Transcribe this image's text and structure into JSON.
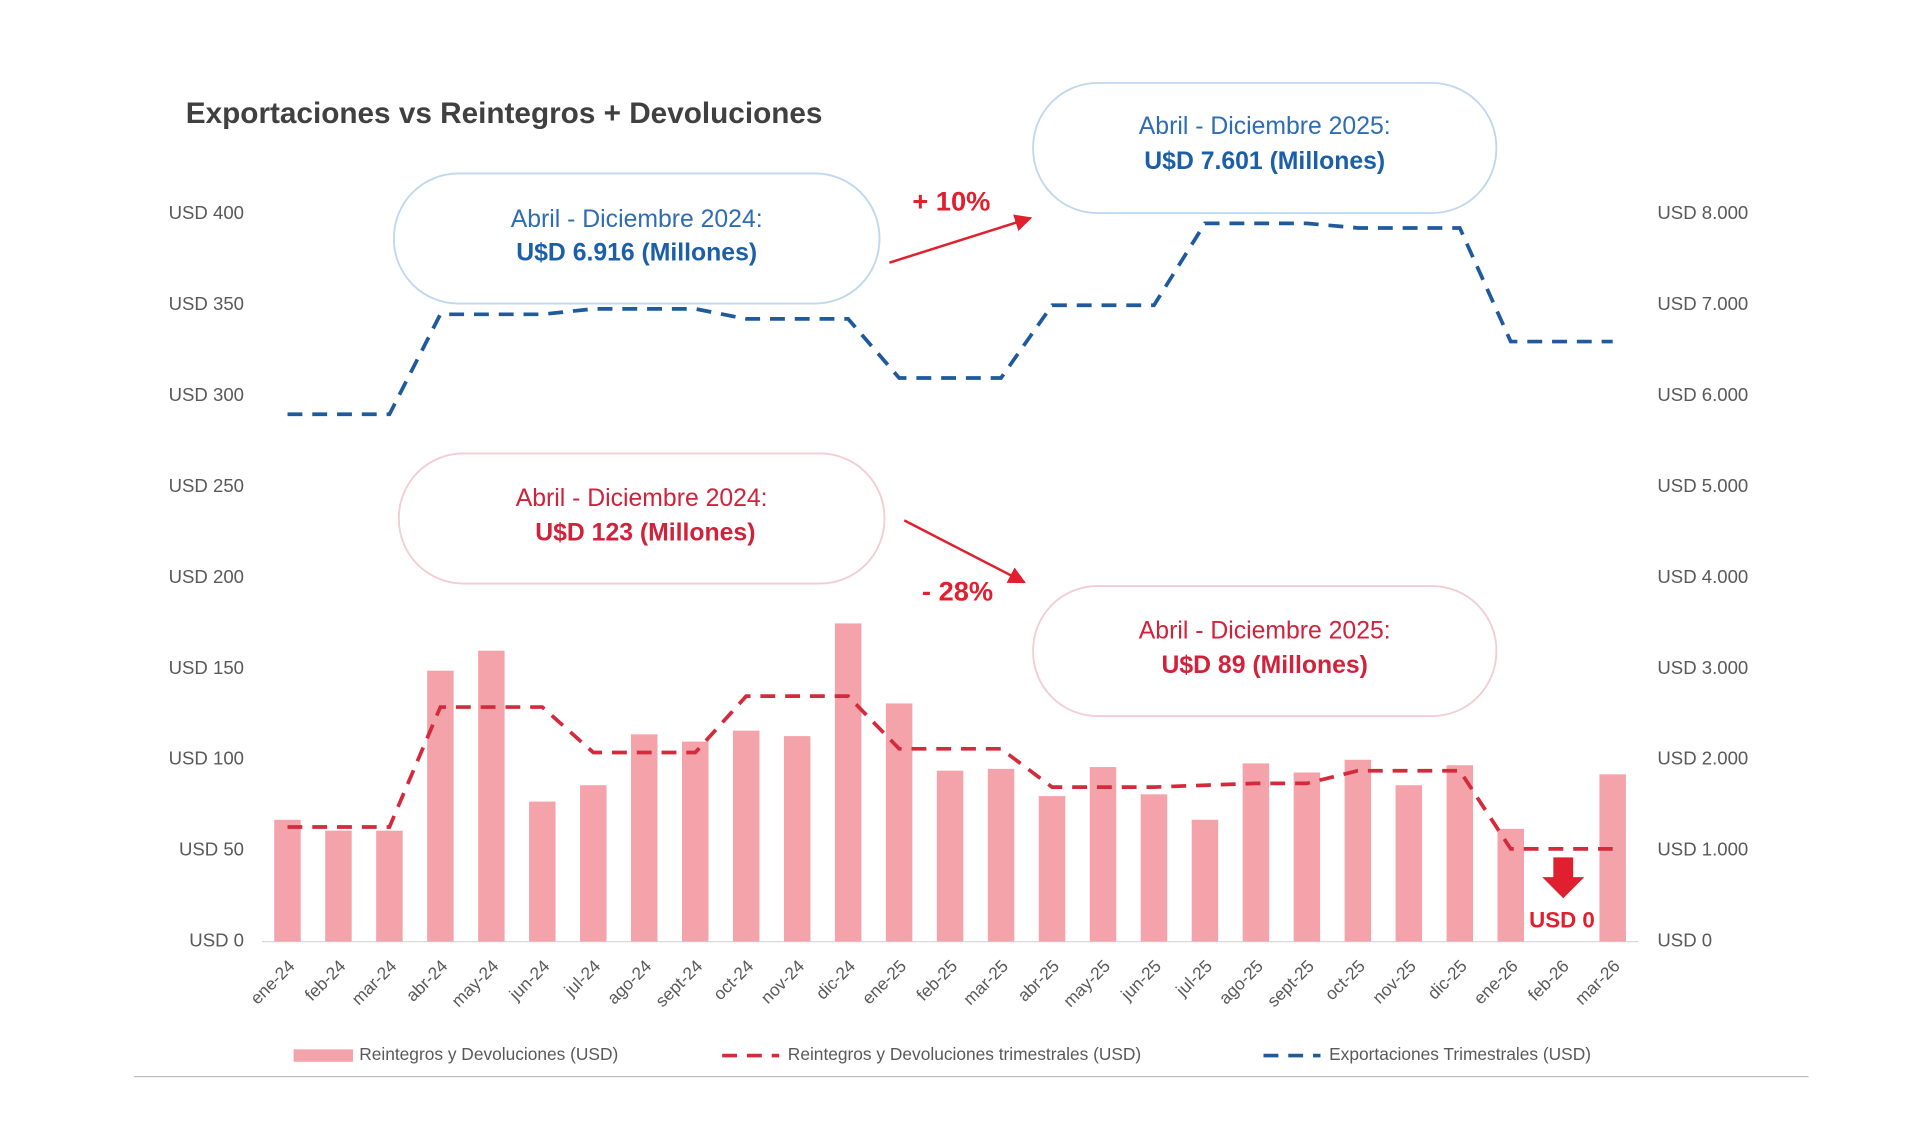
{
  "chart_data": {
    "type": "bar",
    "title": "Exportaciones vs Reintegros + Devoluciones",
    "categories": [
      "ene-24",
      "feb-24",
      "mar-24",
      "abr-24",
      "may-24",
      "jun-24",
      "jul-24",
      "ago-24",
      "sept-24",
      "oct-24",
      "nov-24",
      "dic-24",
      "ene-25",
      "feb-25",
      "mar-25",
      "abr-25",
      "may-25",
      "jun-25",
      "jul-25",
      "ago-25",
      "sept-25",
      "oct-25",
      "nov-25",
      "dic-25",
      "ene-26",
      "feb-26",
      "mar-26"
    ],
    "series": [
      {
        "name": "Reintegros y Devoluciones (USD)",
        "type": "bar",
        "color": "#f5a3ab",
        "values": [
          67,
          61,
          61,
          149,
          160,
          77,
          86,
          114,
          110,
          116,
          113,
          175,
          131,
          94,
          95,
          80,
          96,
          81,
          67,
          98,
          93,
          100,
          86,
          97,
          62,
          0,
          92
        ]
      },
      {
        "name": "Reintegros y Devoluciones trimestrales (USD)",
        "type": "line",
        "color": "#d42a3c",
        "values": [
          63,
          63,
          63,
          129,
          129,
          129,
          104,
          104,
          104,
          135,
          135,
          135,
          106,
          106,
          106,
          85,
          85,
          85,
          86,
          87,
          87,
          94,
          94,
          94,
          51,
          51,
          51
        ]
      },
      {
        "name": "Exportaciones Trimestrales (USD)",
        "type": "line",
        "axis": "y2",
        "color": "#1e5a9c",
        "values": [
          5800,
          5800,
          5800,
          6900,
          6900,
          6900,
          6960,
          6960,
          6960,
          6850,
          6850,
          6850,
          6200,
          6200,
          6200,
          7000,
          7000,
          7000,
          7900,
          7900,
          7900,
          7850,
          7850,
          7850,
          6600,
          6600,
          6600
        ]
      }
    ],
    "ylim": [
      0,
      400
    ],
    "yticks": [
      {
        "value": 0,
        "label": "USD 0"
      },
      {
        "value": 50,
        "label": "USD 50"
      },
      {
        "value": 100,
        "label": "USD 100"
      },
      {
        "value": 150,
        "label": "USD 150"
      },
      {
        "value": 200,
        "label": "USD 200"
      },
      {
        "value": 250,
        "label": "USD 250"
      },
      {
        "value": 300,
        "label": "USD 300"
      },
      {
        "value": 350,
        "label": "USD 350"
      },
      {
        "value": 400,
        "label": "USD 400"
      }
    ],
    "y2lim": [
      0,
      8000
    ],
    "y2ticks": [
      {
        "value": 0,
        "label": "USD 0"
      },
      {
        "value": 1000,
        "label": "USD 1.000"
      },
      {
        "value": 2000,
        "label": "USD 2.000"
      },
      {
        "value": 3000,
        "label": "USD 3.000"
      },
      {
        "value": 4000,
        "label": "USD 4.000"
      },
      {
        "value": 5000,
        "label": "USD 5.000"
      },
      {
        "value": 6000,
        "label": "USD 6.000"
      },
      {
        "value": 7000,
        "label": "USD 7.000"
      },
      {
        "value": 8000,
        "label": "USD 8.000"
      }
    ],
    "grid": false,
    "legend": "bottom",
    "annotations": [
      {
        "label": "Abril - Diciembre 2024:",
        "value": "U$D 6.916 (Millones)"
      },
      {
        "label": "Abril - Diciembre 2025:",
        "value": "U$D 7.601 (Millones)"
      },
      {
        "label": "Abril - Diciembre 2024:",
        "value": "U$D 123 (Millones)"
      },
      {
        "label": "Abril - Diciembre 2025:",
        "value": "U$D 89 (Millones)"
      }
    ],
    "changes": [
      "+ 10%",
      "- 28%"
    ],
    "zero_note": "USD 0"
  }
}
